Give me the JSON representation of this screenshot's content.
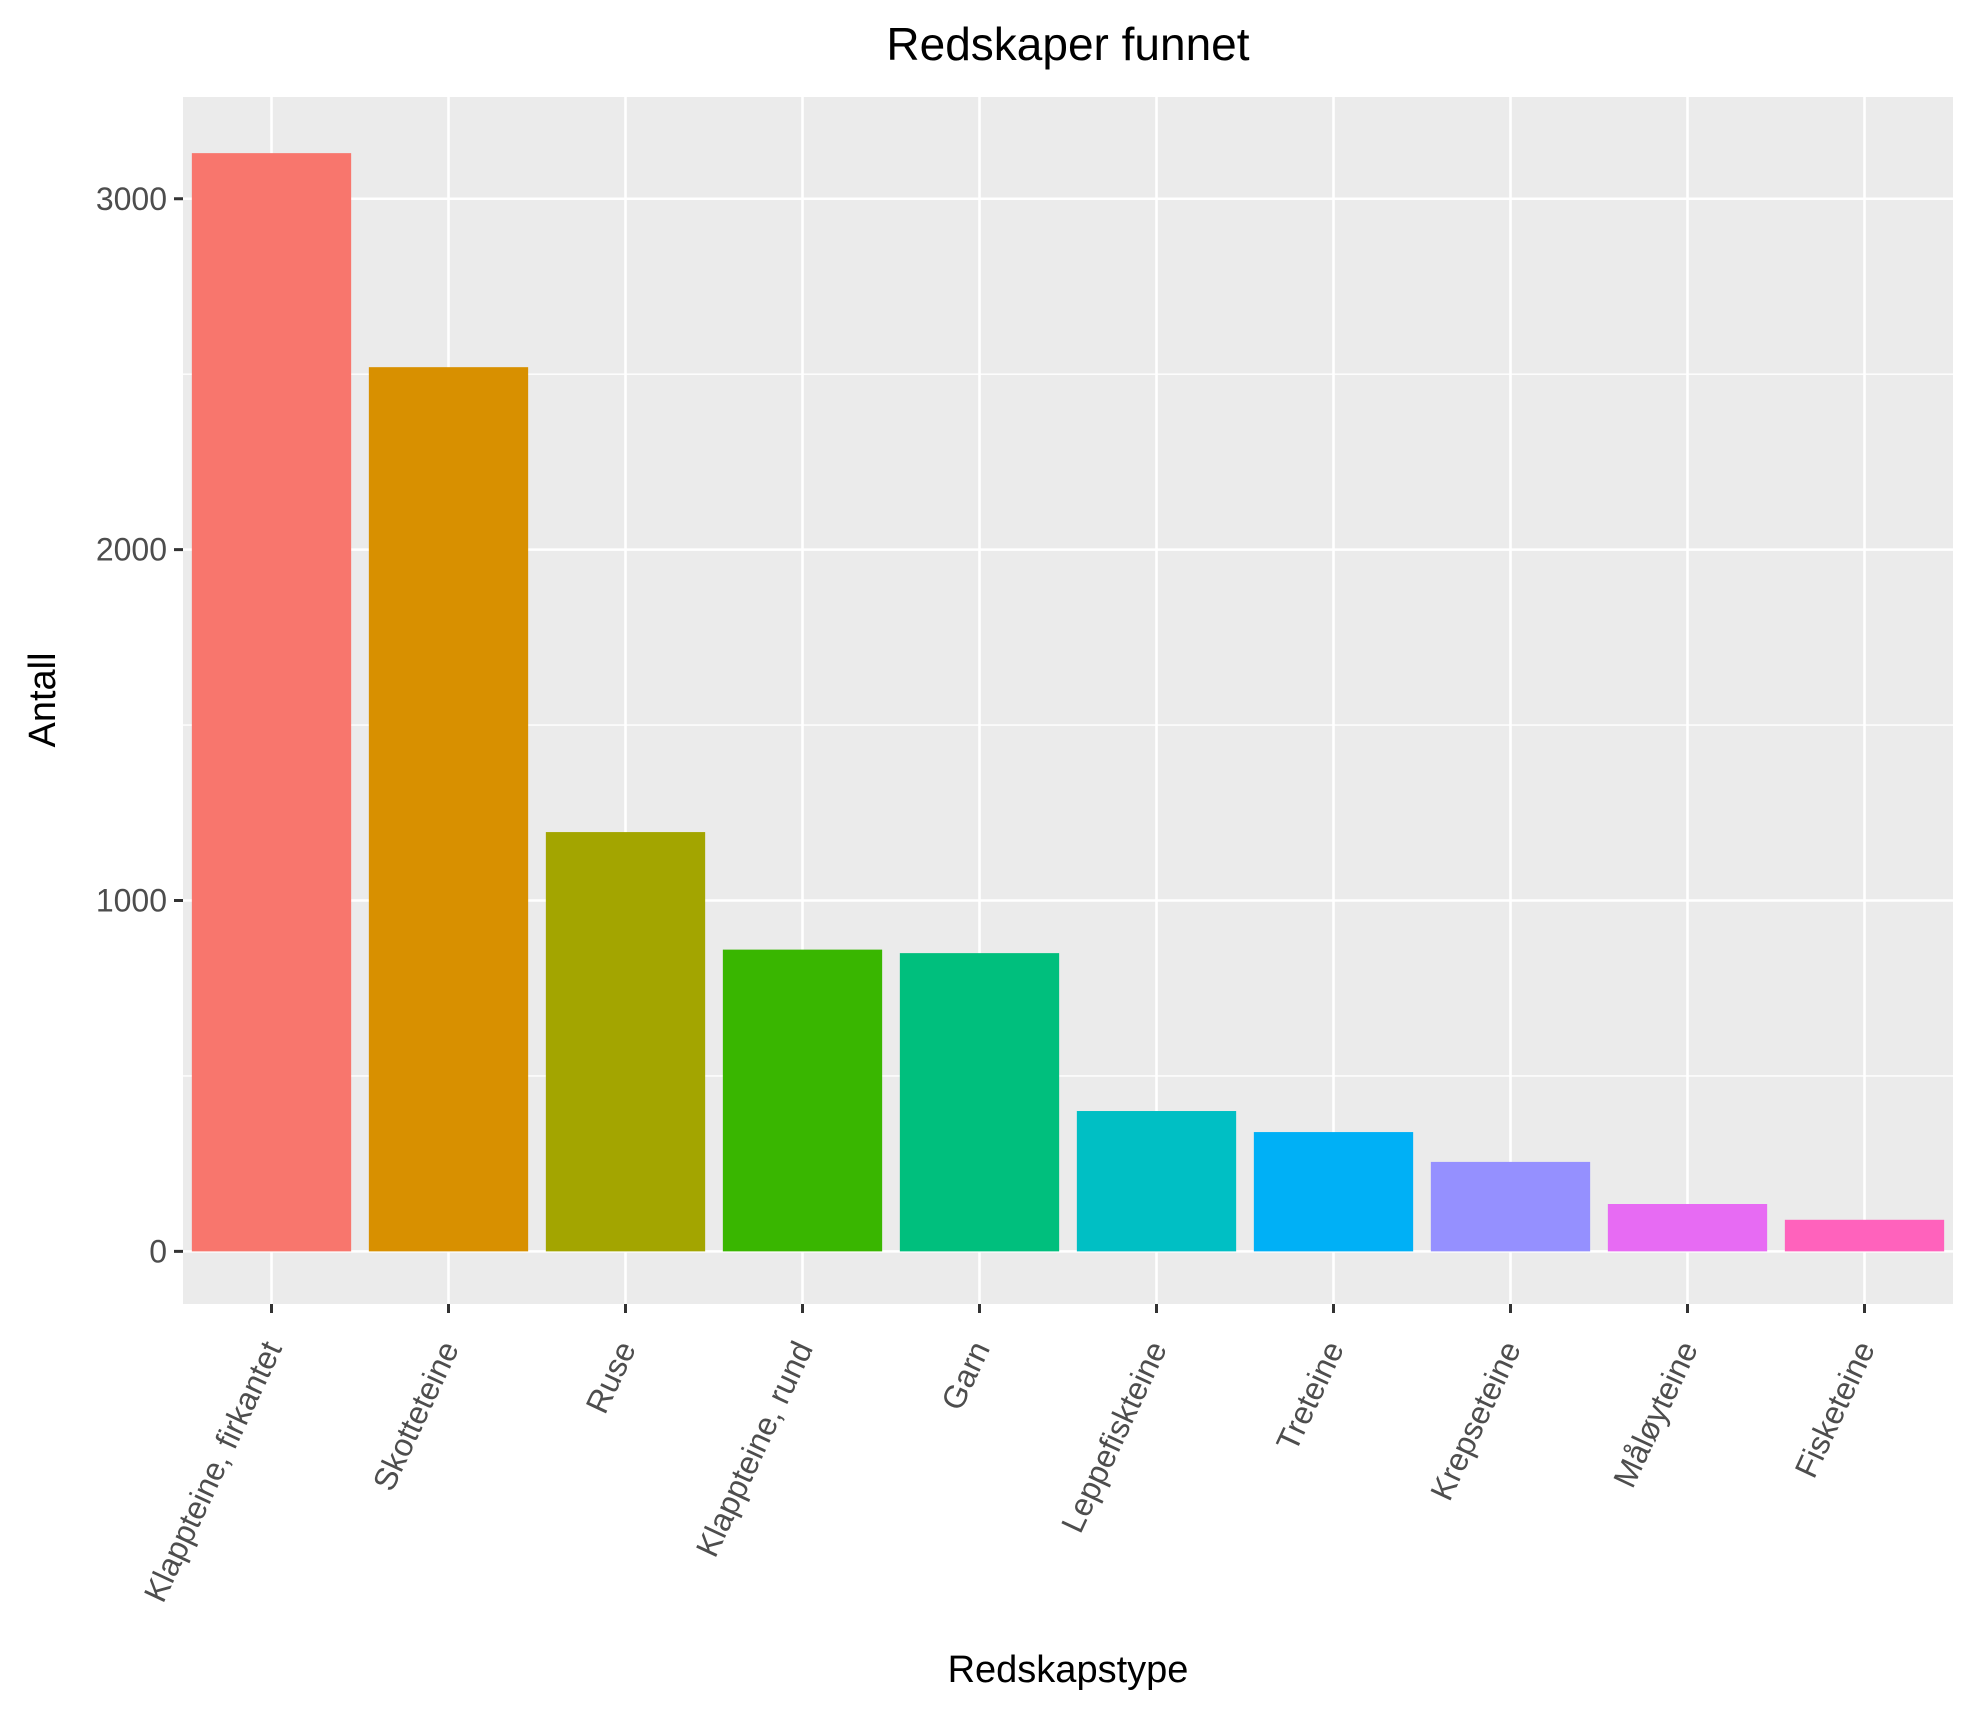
{
  "chart_data": {
    "type": "bar",
    "title": "Redskaper funnet",
    "xlabel": "Redskapstype",
    "ylabel": "Antall",
    "categories": [
      "Klappteine, firkantet",
      "Skotteteine",
      "Ruse",
      "Klappteine, rund",
      "Garn",
      "Leppefiskteine",
      "Treteine",
      "Krepseteine",
      "Måløyteine",
      "Fisketeine"
    ],
    "values": [
      3130,
      2520,
      1195,
      860,
      850,
      400,
      340,
      255,
      135,
      90
    ],
    "colors": [
      "#F8766D",
      "#D89000",
      "#A3A500",
      "#39B600",
      "#00BF7D",
      "#00BFC4",
      "#00B0F6",
      "#9590FF",
      "#E76BF3",
      "#FF62BC"
    ],
    "yticks": [
      0,
      1000,
      2000,
      3000
    ],
    "ylim": [
      -150,
      3290
    ],
    "grid": true,
    "legend": "none"
  }
}
